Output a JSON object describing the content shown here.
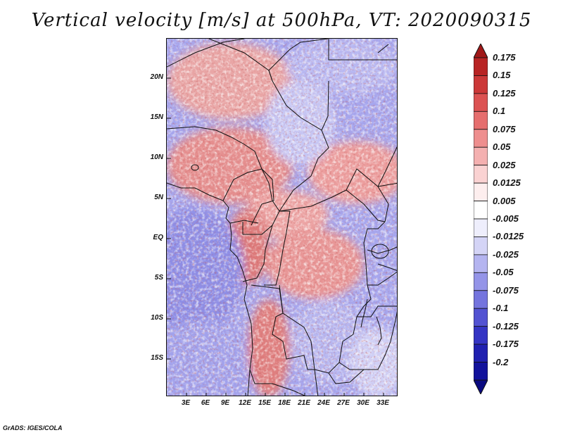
{
  "title": "Vertical velocity [m/s] at 500hPa, VT: 2020090315",
  "footer": "GrADS: IGES/COLA",
  "map": {
    "region": "Central Africa",
    "latitude_labels": [
      "20N",
      "15N",
      "10N",
      "5N",
      "EQ",
      "5S",
      "10S",
      "15S"
    ],
    "longitude_labels": [
      "3E",
      "6E",
      "9E",
      "12E",
      "15E",
      "18E",
      "21E",
      "24E",
      "27E",
      "30E",
      "33E"
    ]
  },
  "colorbar": {
    "labels": [
      "0.175",
      "0.15",
      "0.125",
      "0.1",
      "0.075",
      "0.05",
      "0.025",
      "0.0125",
      "0.005",
      "-0.005",
      "-0.0125",
      "-0.025",
      "-0.05",
      "-0.075",
      "-0.1",
      "-0.125",
      "-0.175",
      "-0.2"
    ],
    "colors": [
      "#a01818",
      "#b82424",
      "#cc3838",
      "#dc5252",
      "#e66e6e",
      "#ee8e8e",
      "#f4b0b0",
      "#fad2d2",
      "#fdeeee",
      "#ffffff",
      "#eeeefc",
      "#d4d4f6",
      "#b4b4f0",
      "#9494e8",
      "#7474de",
      "#5252d2",
      "#3434c4",
      "#2020b0",
      "#12129c",
      "#0a0a80"
    ]
  }
}
